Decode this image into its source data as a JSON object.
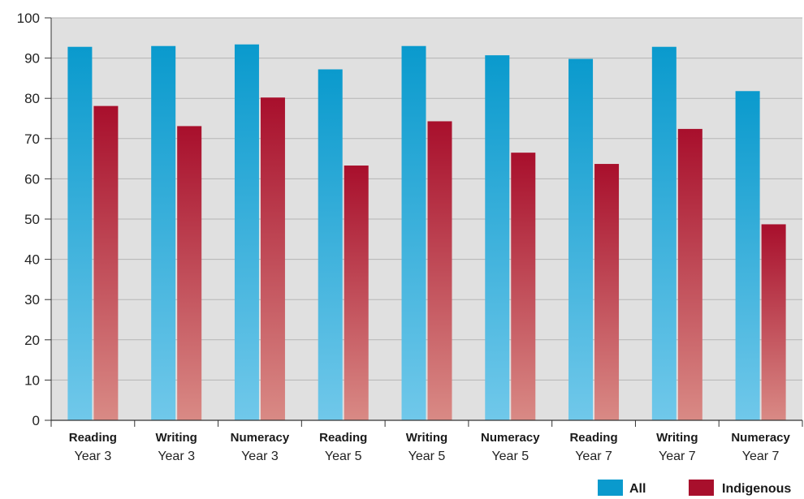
{
  "chart_data": {
    "type": "bar",
    "categories": [
      [
        "Reading",
        "Year 3"
      ],
      [
        "Writing",
        "Year 3"
      ],
      [
        "Numeracy",
        "Year 3"
      ],
      [
        "Reading",
        "Year 5"
      ],
      [
        "Writing",
        "Year 5"
      ],
      [
        "Numeracy",
        "Year 5"
      ],
      [
        "Reading",
        "Year 7"
      ],
      [
        "Writing",
        "Year 7"
      ],
      [
        "Numeracy",
        "Year 7"
      ]
    ],
    "series": [
      {
        "name": "All",
        "values": [
          92.8,
          93.0,
          93.4,
          87.2,
          93.0,
          90.7,
          89.8,
          92.8,
          81.8
        ]
      },
      {
        "name": "Indigenous",
        "values": [
          78.1,
          73.1,
          80.2,
          63.3,
          74.3,
          66.5,
          63.7,
          72.4,
          48.7
        ]
      }
    ],
    "y_ticks": [
      "0",
      "10",
      "20",
      "30",
      "40",
      "50",
      "60",
      "70",
      "80",
      "90",
      "100"
    ],
    "ylim": [
      0,
      100
    ],
    "grid": true,
    "legend_position": "bottom-right",
    "colors": {
      "All": {
        "top": "#0a9acd",
        "bottom": "#70c8ea"
      },
      "Indigenous": {
        "top": "#a80f2c",
        "bottom": "#d98a85"
      },
      "plot_background": "#e0e0e0",
      "gridline": "#b5b5b5",
      "axis": "#333333"
    }
  }
}
